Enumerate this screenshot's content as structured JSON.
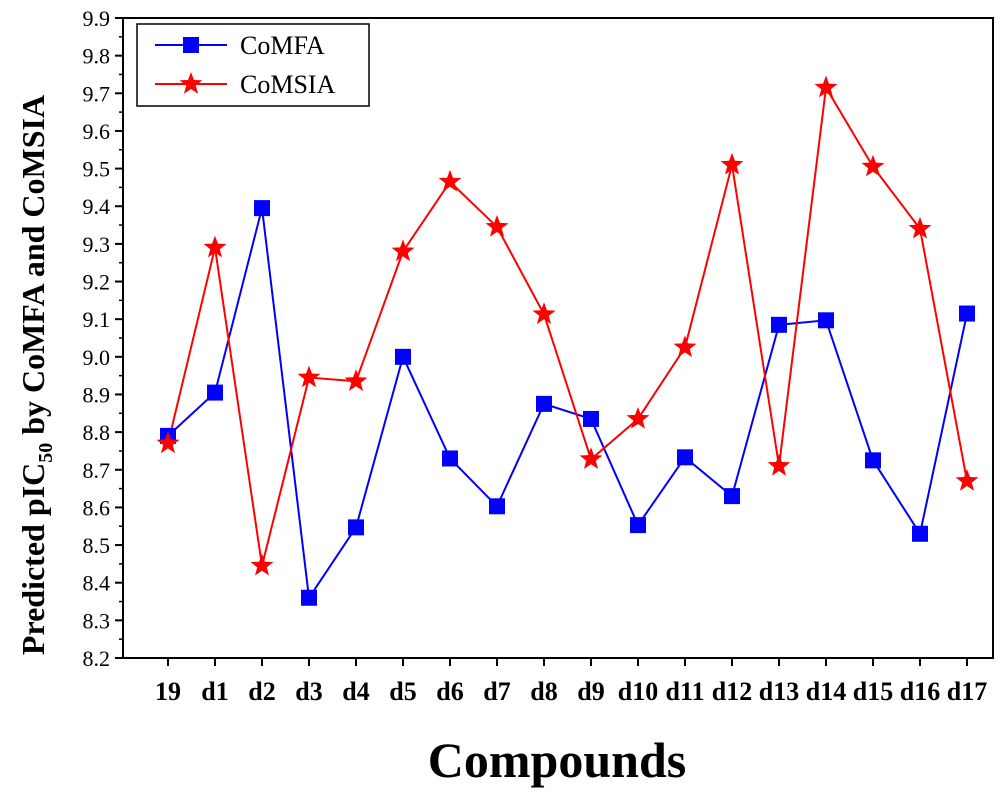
{
  "chart_data": {
    "type": "line",
    "title": "",
    "xlabel": "Compounds",
    "ylabel": {
      "prefix": "Predicted pIC",
      "subscript": "50",
      "suffix": " by CoMFA and CoMSIA"
    },
    "categories": [
      "19",
      "d1",
      "d2",
      "d3",
      "d4",
      "d5",
      "d6",
      "d7",
      "d8",
      "d9",
      "d10",
      "d11",
      "d12",
      "d13",
      "d14",
      "d15",
      "d16",
      "d17"
    ],
    "ylim": [
      8.2,
      9.9
    ],
    "yticks": [
      "8.2",
      "8.3",
      "8.4",
      "8.5",
      "8.6",
      "8.7",
      "8.8",
      "8.9",
      "9.0",
      "9.1",
      "9.2",
      "9.3",
      "9.4",
      "9.5",
      "9.6",
      "9.7",
      "9.8",
      "9.9"
    ],
    "legend_position": "top-left",
    "series": [
      {
        "name": "CoMFA",
        "color": "#0000ff",
        "marker": "square",
        "values": [
          8.79,
          8.905,
          9.395,
          8.36,
          8.547,
          9.0,
          8.73,
          8.603,
          8.875,
          8.835,
          8.553,
          8.733,
          8.63,
          9.085,
          9.097,
          8.725,
          8.53,
          9.115
        ]
      },
      {
        "name": "CoMSIA",
        "color": "#ff0000",
        "marker": "star",
        "values": [
          8.77,
          9.29,
          8.445,
          8.945,
          8.935,
          9.28,
          9.465,
          9.345,
          9.113,
          8.728,
          8.835,
          9.025,
          9.51,
          8.71,
          9.715,
          9.505,
          9.34,
          8.67
        ]
      }
    ]
  }
}
